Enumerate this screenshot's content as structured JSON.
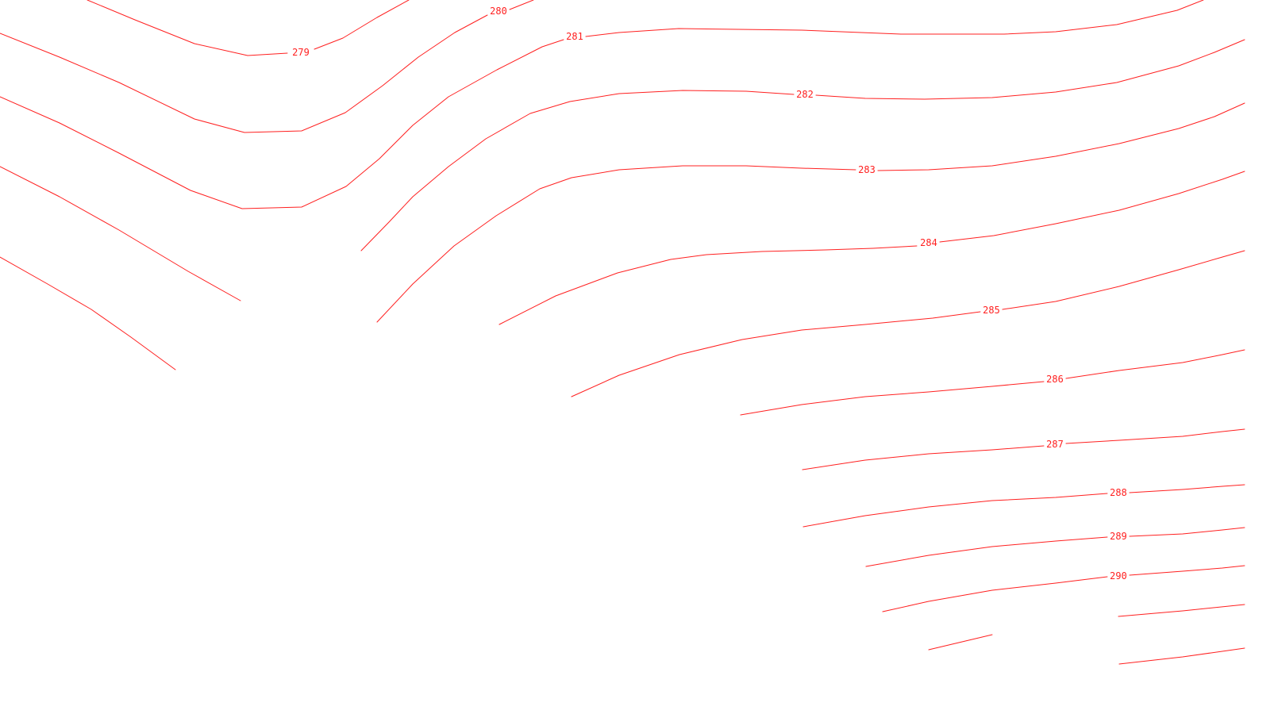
{
  "map": {
    "line_color": "#ff2020",
    "background": "#ffffff",
    "labels": [
      "279",
      "280",
      "281",
      "282",
      "283",
      "284",
      "285",
      "286",
      "287",
      "288",
      "289",
      "290"
    ]
  }
}
